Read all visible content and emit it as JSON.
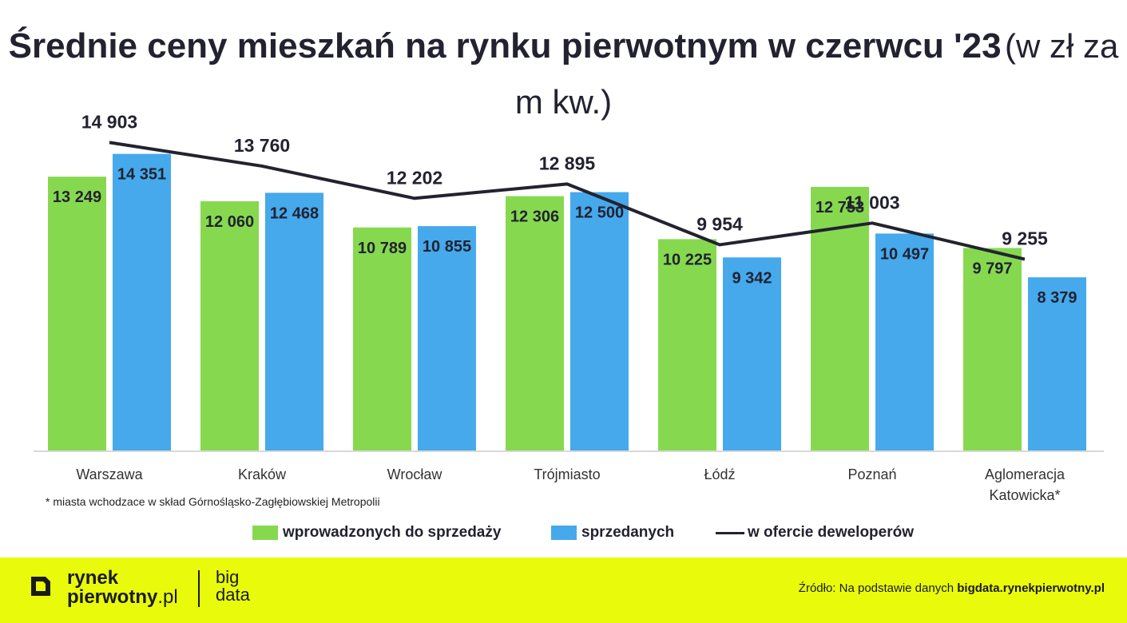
{
  "chart_data": {
    "type": "bar",
    "title_bold": "Średnie ceny mieszkań na rynku pierwotnym w czerwcu '23",
    "title_light": "(w zł za m kw.)",
    "categories": [
      "Warszawa",
      "Kraków",
      "Wrocław",
      "Trójmiasto",
      "Łódź",
      "Poznań",
      "Aglomeracja Katowicka*"
    ],
    "series": [
      {
        "name": "wprowadzonych do sprzedaży",
        "kind": "bar",
        "color": "#86d94f",
        "values": [
          13249,
          12060,
          10789,
          12306,
          10225,
          12753,
          9797
        ],
        "labels": [
          "13 249",
          "12 060",
          "10 789",
          "12 306",
          "10 225",
          "12 753",
          "9 797"
        ]
      },
      {
        "name": "sprzedanych",
        "kind": "bar",
        "color": "#45a9ec",
        "values": [
          14351,
          12468,
          10855,
          12500,
          9342,
          10497,
          8379
        ],
        "labels": [
          "14 351",
          "12 468",
          "10 855",
          "12 500",
          "9 342",
          "10 497",
          "8 379"
        ]
      },
      {
        "name": "w ofercie deweloperów",
        "kind": "line",
        "color": "#222230",
        "values": [
          14903,
          13760,
          12202,
          12895,
          9954,
          11003,
          9255
        ],
        "labels": [
          "14 903",
          "13 760",
          "12 202",
          "12 895",
          "9 954",
          "11 003",
          "9 255"
        ]
      }
    ],
    "ylim": [
      0,
      16000
    ],
    "grid": false,
    "legend_position": "bottom"
  },
  "footnote": "* miasta wchodzace w skład Górnośląsko-Zagłębiowskiej Metropolii",
  "footer": {
    "logo_line1": "rynek",
    "logo_line2_bold": "pierwotny",
    "logo_line2_light": ".pl",
    "logo_big_line1": "big",
    "logo_big_line2": "data",
    "source_prefix": "Źródło: Na podstawie danych ",
    "source_bold": "bigdata.rynekpierwotny.pl",
    "background": "#e9fb0a"
  }
}
